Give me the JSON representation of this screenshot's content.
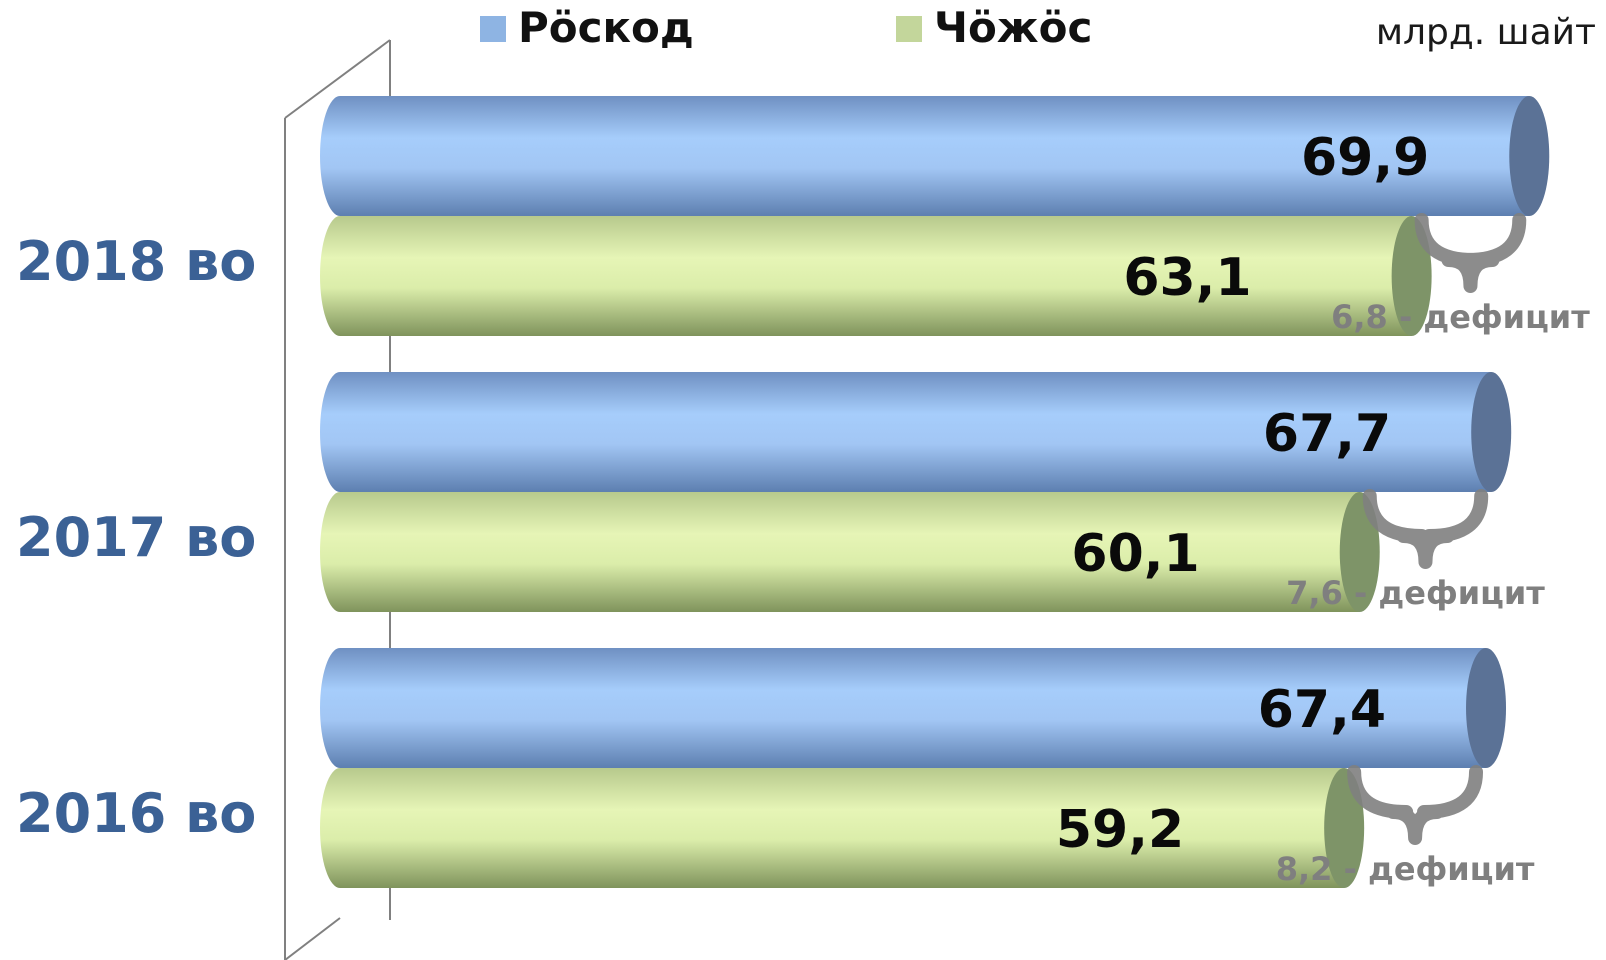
{
  "legend": [
    {
      "label": "Рӧскод",
      "color": "#8eb4e3"
    },
    {
      "label": "Чӧжӧс",
      "color": "#c3d69b"
    }
  ],
  "unit": "млрд. шайт",
  "colors": {
    "expense_top": "#a6cdfb",
    "expense_bottom": "#6a8bbd",
    "expense_cap": "#5b7296",
    "income_top": "#e6f5b6",
    "income_bottom": "#aabb7f",
    "income_cap": "#7e9468",
    "brace": "#7f7f7f",
    "year_text": "#3b6195"
  },
  "chart_data": {
    "type": "bar",
    "orientation": "horizontal",
    "categories": [
      "2018 во",
      "2017 во",
      "2016 во"
    ],
    "series": [
      {
        "name": "Рӧскод",
        "values": [
          69.9,
          67.7,
          67.4
        ],
        "labels": [
          "69,9",
          "67,7",
          "67,4"
        ]
      },
      {
        "name": "Чӧжӧс",
        "values": [
          63.1,
          60.1,
          59.2
        ],
        "labels": [
          "63,1",
          "60,1",
          "59,2"
        ]
      }
    ],
    "annotations": [
      "6,8 - дефицит",
      "7,6 - дефицит",
      "8,2 - дефицит"
    ],
    "grid": false,
    "legend_position": "top"
  }
}
